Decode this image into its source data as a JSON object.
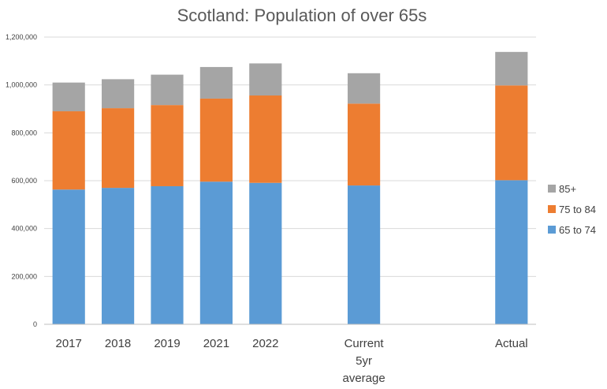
{
  "chart_data": {
    "type": "bar",
    "stacked": true,
    "title": "Scotland: Population of over 65s",
    "xlabel": "",
    "ylabel": "",
    "ylim": [
      0,
      1200000
    ],
    "yticks": [
      "0",
      "200,000",
      "400,000",
      "600,000",
      "800,000",
      "1,000,000",
      "1,200,000"
    ],
    "yticks_values": [
      0,
      200000,
      400000,
      600000,
      800000,
      1000000,
      1200000
    ],
    "grid": true,
    "legend_position": "right",
    "categories": [
      [
        "2017"
      ],
      [
        "2018"
      ],
      [
        "2019"
      ],
      [
        "2021"
      ],
      [
        "2022"
      ],
      [
        "Current",
        "5yr",
        "average"
      ],
      [
        "Actual"
      ]
    ],
    "slot_positions": [
      0,
      1,
      2,
      3,
      4,
      6,
      9
    ],
    "slot_count": 10,
    "series": [
      {
        "name": "65 to 74",
        "color": "#5b9bd5",
        "values": [
          563000,
          570000,
          577000,
          596000,
          591000,
          580000,
          602000
        ]
      },
      {
        "name": "75 to 84",
        "color": "#ed7d31",
        "values": [
          327000,
          333000,
          339000,
          347000,
          365000,
          342000,
          396000
        ]
      },
      {
        "name": "85+",
        "color": "#a5a5a5",
        "values": [
          120000,
          121000,
          127000,
          132000,
          134000,
          127000,
          140000
        ]
      }
    ]
  }
}
